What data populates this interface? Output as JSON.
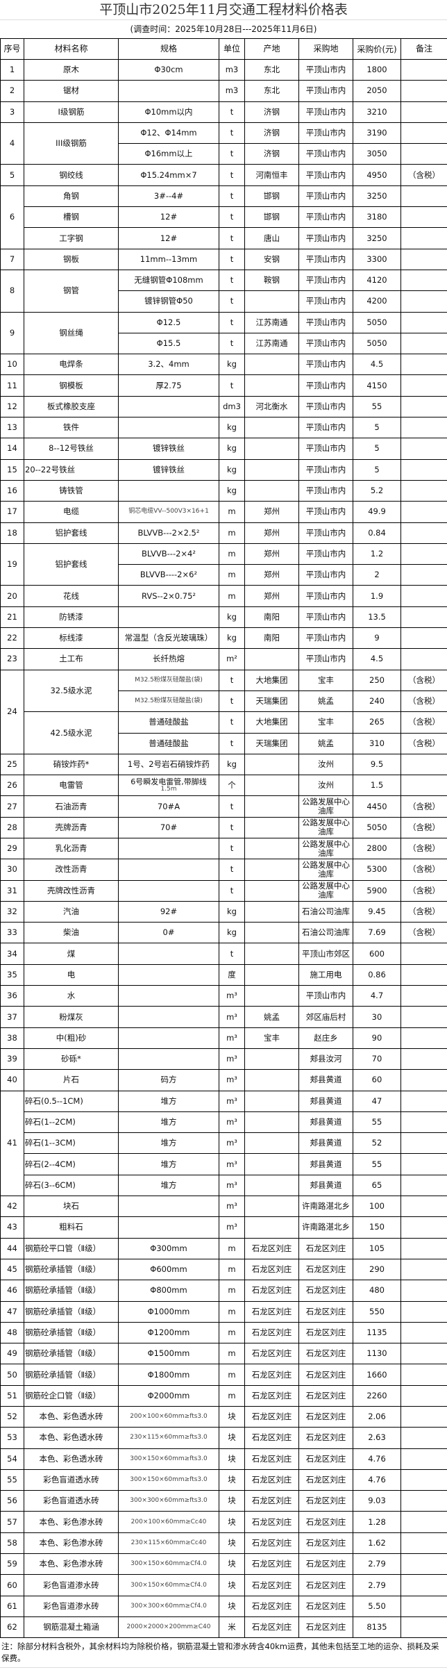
{
  "title": "平顶山市2025年11月交通工程材料价格表",
  "subtitle": "(调查时间：2025年10月28日---2025年11月6日)",
  "columns": [
    "序号",
    "材料名称",
    "规格",
    "单位",
    "产地",
    "采购地",
    "采购价(元)",
    "备注"
  ],
  "groups": [
    {
      "no": "1",
      "items": [
        {
          "name": "原木",
          "spec": "Φ30cm",
          "unit": "m3",
          "origin": "东北",
          "place": "平顶山市内",
          "price": "1800",
          "note": ""
        }
      ]
    },
    {
      "no": "2",
      "items": [
        {
          "name": "锯材",
          "spec": "",
          "unit": "m3",
          "origin": "东北",
          "place": "平顶山市内",
          "price": "2050",
          "note": ""
        }
      ]
    },
    {
      "no": "3",
      "items": [
        {
          "name": "Ⅰ级钢筋",
          "spec": "Φ10mm以内",
          "unit": "t",
          "origin": "济钢",
          "place": "平顶山市内",
          "price": "3210",
          "note": ""
        }
      ]
    },
    {
      "no": "4",
      "items": [
        {
          "name": "III级钢筋",
          "spec": "Φ12、Φ14mm",
          "unit": "t",
          "origin": "济钢",
          "place": "平顶山市内",
          "price": "3190",
          "note": ""
        },
        {
          "name": null,
          "spec": "Φ16mm以上",
          "unit": "t",
          "origin": "济钢",
          "place": "平顶山市内",
          "price": "3050",
          "note": ""
        }
      ]
    },
    {
      "no": "5",
      "items": [
        {
          "name": "钢绞线",
          "spec": "Φ15.24mm×7",
          "unit": "t",
          "origin": "河南恒丰",
          "place": "平顶山市内",
          "price": "4950",
          "note": "（含税）"
        }
      ]
    },
    {
      "no": "6",
      "items": [
        {
          "name": "角钢",
          "spec": "3#--4#",
          "unit": "t",
          "origin": "邯钢",
          "place": "平顶山市内",
          "price": "3250",
          "note": ""
        },
        {
          "name": "槽钢",
          "spec": "12#",
          "unit": "t",
          "origin": "邯钢",
          "place": "平顶山市内",
          "price": "3180",
          "note": ""
        },
        {
          "name": "工字钢",
          "spec": "12#",
          "unit": "t",
          "origin": "唐山",
          "place": "平顶山市内",
          "price": "3250",
          "note": ""
        }
      ]
    },
    {
      "no": "7",
      "items": [
        {
          "name": "钢板",
          "spec": "11mm--13mm",
          "unit": "t",
          "origin": "安钢",
          "place": "平顶山市内",
          "price": "3300",
          "note": ""
        }
      ]
    },
    {
      "no": "8",
      "items": [
        {
          "name": "钢管",
          "spec": "无缝钢管Φ108mm",
          "unit": "t",
          "origin": "鞍钢",
          "place": "平顶山市内",
          "price": "4120",
          "note": ""
        },
        {
          "name": null,
          "spec": "镀锌钢管Φ50",
          "unit": "t",
          "origin": "",
          "place": "平顶山市内",
          "price": "4200",
          "note": ""
        }
      ]
    },
    {
      "no": "9",
      "items": [
        {
          "name": "钢丝绳",
          "spec": "Φ12.5",
          "unit": "t",
          "origin": "江苏南通",
          "place": "平顶山市内",
          "price": "5050",
          "note": ""
        },
        {
          "name": null,
          "spec": "Φ15.5",
          "unit": "t",
          "origin": "江苏南通",
          "place": "平顶山市内",
          "price": "5050",
          "note": ""
        }
      ]
    },
    {
      "no": "10",
      "items": [
        {
          "name": "电焊条",
          "spec": "3.2、4mm",
          "unit": "kg",
          "origin": "",
          "place": "平顶山市内",
          "price": "4.5",
          "note": ""
        }
      ]
    },
    {
      "no": "11",
      "items": [
        {
          "name": "钢模板",
          "spec": "厚2.75",
          "unit": "t",
          "origin": "",
          "place": "平顶山市内",
          "price": "4150",
          "note": ""
        }
      ]
    },
    {
      "no": "12",
      "items": [
        {
          "name": "板式橡胶支座",
          "spec": "",
          "unit": "dm3",
          "origin": "河北衡水",
          "place": "平顶山市内",
          "price": "55",
          "note": ""
        }
      ]
    },
    {
      "no": "13",
      "items": [
        {
          "name": "铁件",
          "spec": "",
          "unit": "kg",
          "origin": "",
          "place": "平顶山市内",
          "price": "5",
          "note": ""
        }
      ]
    },
    {
      "no": "14",
      "items": [
        {
          "name": "8--12号铁丝",
          "spec": "镀锌铁丝",
          "unit": "kg",
          "origin": "",
          "place": "平顶山市内",
          "price": "5",
          "note": ""
        }
      ]
    },
    {
      "no": "15",
      "items": [
        {
          "name": "20--22号铁丝",
          "spec": "镀锌铁丝",
          "unit": "kg",
          "origin": "",
          "place": "平顶山市内",
          "price": "5",
          "note": ""
        }
      ]
    },
    {
      "no": "16",
      "items": [
        {
          "name": "铸铁管",
          "spec": "",
          "unit": "kg",
          "origin": "",
          "place": "平顶山市内",
          "price": "5.2",
          "note": ""
        }
      ]
    },
    {
      "no": "17",
      "items": [
        {
          "name": "电缆",
          "spec": "铜芯电缆VV--500V3×16+1",
          "spec_small": true,
          "unit": "m",
          "origin": "郑州",
          "place": "平顶山市内",
          "price": "49.9",
          "note": ""
        }
      ]
    },
    {
      "no": "18",
      "items": [
        {
          "name": "铝护套线",
          "spec": "BLVVB---2×2.5²",
          "unit": "m",
          "origin": "郑州",
          "place": "平顶山市内",
          "price": "0.84",
          "note": ""
        }
      ]
    },
    {
      "no": "19",
      "items": [
        {
          "name": "铝护套线",
          "spec": "BLVVB---2×4²",
          "unit": "m",
          "origin": "郑州",
          "place": "平顶山市内",
          "price": "1.2",
          "note": ""
        },
        {
          "name": null,
          "spec": "BLVVB----2×6²",
          "unit": "m",
          "origin": "郑州",
          "place": "平顶山市内",
          "price": "2",
          "note": ""
        }
      ]
    },
    {
      "no": "20",
      "items": [
        {
          "name": "花线",
          "spec": "RVS--2×0.75²",
          "unit": "m",
          "origin": "郑州",
          "place": "平顶山市内",
          "price": "1.9",
          "note": ""
        }
      ]
    },
    {
      "no": "21",
      "items": [
        {
          "name": "防锈漆",
          "spec": "",
          "unit": "kg",
          "origin": "南阳",
          "place": "平顶山市内",
          "price": "13.5",
          "note": ""
        }
      ]
    },
    {
      "no": "22",
      "items": [
        {
          "name": "标线漆",
          "spec": "常温型（含反光玻璃珠）",
          "unit": "kg",
          "origin": "南阳",
          "place": "平顶山市内",
          "price": "9",
          "note": ""
        }
      ]
    },
    {
      "no": "23",
      "items": [
        {
          "name": "土工布",
          "spec": "长纤热熔",
          "unit": "m²",
          "origin": "",
          "place": "平顶山市内",
          "price": "4.5",
          "note": ""
        }
      ]
    },
    {
      "no": "24",
      "items": [
        {
          "name": "32.5级水泥",
          "name_span": 2,
          "spec": "M32.5粉煤灰硅酸盐(袋)",
          "spec_small": true,
          "unit": "t",
          "origin": "大地集团",
          "place": "宝丰",
          "price": "250",
          "note": "（含税）"
        },
        {
          "name": null,
          "spec": "M32.5粉煤灰硅酸盐(袋)",
          "spec_small": true,
          "unit": "t",
          "origin": "天瑞集团",
          "place": "姚孟",
          "price": "240",
          "note": "（含税）"
        },
        {
          "name": "42.5级水泥",
          "name_span": 2,
          "spec": "普通硅酸盐",
          "unit": "t",
          "origin": "大地集团",
          "place": "宝丰",
          "price": "265",
          "note": "（含税）"
        },
        {
          "name": null,
          "spec": "普通硅酸盐",
          "unit": "t",
          "origin": "天瑞集团",
          "place": "姚孟",
          "price": "310",
          "note": "（含税）"
        }
      ]
    },
    {
      "no": "25",
      "items": [
        {
          "name": "硝铵炸药*",
          "spec": "1号、2号岩石硝铵炸药",
          "unit": "kg",
          "origin": "",
          "place": "汝州",
          "price": "9.5",
          "note": ""
        }
      ]
    },
    {
      "no": "26",
      "items": [
        {
          "name": "电雷管",
          "spec": "6号瞬发电雷管,带脚线",
          "spec_line2": "1.5m",
          "unit": "个",
          "origin": "",
          "place": "汝州",
          "price": "1.5",
          "note": ""
        }
      ]
    },
    {
      "no": "27",
      "items": [
        {
          "name": "石油沥青",
          "spec": "70#A",
          "unit": "t",
          "origin": "",
          "place": "公路发展中心油库",
          "price": "4450",
          "note": "（含税）"
        }
      ]
    },
    {
      "no": "28",
      "items": [
        {
          "name": "壳牌沥青",
          "spec": "70#",
          "unit": "t",
          "origin": "",
          "place": "公路发展中心油库",
          "price": "5050",
          "note": "（含税）"
        }
      ]
    },
    {
      "no": "29",
      "items": [
        {
          "name": "乳化沥青",
          "spec": "",
          "unit": "t",
          "origin": "",
          "place": "公路发展中心油库",
          "price": "2800",
          "note": "（含税）"
        }
      ]
    },
    {
      "no": "30",
      "items": [
        {
          "name": "改性沥青",
          "spec": "",
          "unit": "t",
          "origin": "",
          "place": "公路发展中心油库",
          "price": "5300",
          "note": "（含税）"
        }
      ]
    },
    {
      "no": "31",
      "items": [
        {
          "name": "壳牌改性沥青",
          "spec": "",
          "unit": "t",
          "origin": "",
          "place": "公路发展中心油库",
          "price": "5900",
          "note": "（含税）"
        }
      ]
    },
    {
      "no": "32",
      "items": [
        {
          "name": "汽油",
          "spec": "92#",
          "unit": "kg",
          "origin": "",
          "place": "石油公司油库",
          "price": "9.45",
          "note": "（含税）"
        }
      ]
    },
    {
      "no": "33",
      "items": [
        {
          "name": "柴油",
          "spec": "0#",
          "unit": "kg",
          "origin": "",
          "place": "石油公司油库",
          "price": "7.69",
          "note": "（含税）"
        }
      ]
    },
    {
      "no": "34",
      "items": [
        {
          "name": "煤",
          "spec": "",
          "unit": "t",
          "origin": "",
          "place": "平顶山市郊区",
          "price": "600",
          "note": ""
        }
      ]
    },
    {
      "no": "35",
      "items": [
        {
          "name": "电",
          "spec": "",
          "unit": "度",
          "origin": "",
          "place": "施工用电",
          "price": "0.86",
          "note": ""
        }
      ]
    },
    {
      "no": "36",
      "items": [
        {
          "name": "水",
          "spec": "",
          "unit": "m³",
          "origin": "",
          "place": "平顶山市内",
          "price": "4.7",
          "note": ""
        }
      ]
    },
    {
      "no": "37",
      "items": [
        {
          "name": "粉煤灰",
          "spec": "",
          "unit": "m³",
          "origin": "姚孟",
          "place": "郊区庙后村",
          "price": "30",
          "note": ""
        }
      ]
    },
    {
      "no": "38",
      "items": [
        {
          "name": "中(粗)砂",
          "spec": "",
          "unit": "m³",
          "origin": "宝丰",
          "place": "赵庄乡",
          "price": "90",
          "note": ""
        }
      ]
    },
    {
      "no": "39",
      "items": [
        {
          "name": "砂砾*",
          "spec": "",
          "unit": "m³",
          "origin": "",
          "place": "郏县汝河",
          "price": "70",
          "note": ""
        }
      ]
    },
    {
      "no": "40",
      "items": [
        {
          "name": "片石",
          "spec": "码方",
          "unit": "m³",
          "origin": "",
          "place": "郏县黄道",
          "price": "60",
          "note": ""
        }
      ]
    },
    {
      "no": "41",
      "items": [
        {
          "name": "碎石(0.5--1CM)",
          "spec": "堆方",
          "unit": "m³",
          "origin": "",
          "place": "郏县黄道",
          "price": "47",
          "note": ""
        },
        {
          "name": "碎石(1--2CM)",
          "spec": "堆方",
          "unit": "m³",
          "origin": "",
          "place": "郏县黄道",
          "price": "55",
          "note": ""
        },
        {
          "name": "碎石(1--3CM)",
          "spec": "堆方",
          "unit": "m³",
          "origin": "",
          "place": "郏县黄道",
          "price": "52",
          "note": ""
        },
        {
          "name": "碎石(2--4CM)",
          "spec": "堆方",
          "unit": "m³",
          "origin": "",
          "place": "郏县黄道",
          "price": "55",
          "note": ""
        },
        {
          "name": "碎石(3--6CM)",
          "spec": "堆方",
          "unit": "m³",
          "origin": "",
          "place": "郏县黄道",
          "price": "65",
          "note": ""
        }
      ]
    },
    {
      "no": "42",
      "items": [
        {
          "name": "块石",
          "spec": "",
          "unit": "m³",
          "origin": "",
          "place": "许南路湛北乡",
          "price": "100",
          "note": ""
        }
      ]
    },
    {
      "no": "43",
      "items": [
        {
          "name": "粗料石",
          "spec": "",
          "unit": "m³",
          "origin": "",
          "place": "许南路湛北乡",
          "price": "150",
          "note": ""
        }
      ]
    },
    {
      "no": "44",
      "items": [
        {
          "name": "钢筋砼平口管（Ⅱ级）",
          "spec": "Φ300mm",
          "unit": "m",
          "origin": "石龙区刘庄",
          "place": "石龙区刘庄",
          "price": "105",
          "note": ""
        }
      ]
    },
    {
      "no": "45",
      "items": [
        {
          "name": "钢筋砼承插管（Ⅱ级）",
          "spec": "Φ600mm",
          "unit": "m",
          "origin": "石龙区刘庄",
          "place": "石龙区刘庄",
          "price": "290",
          "note": ""
        }
      ]
    },
    {
      "no": "46",
      "items": [
        {
          "name": "钢筋砼承插管（Ⅱ级）",
          "spec": "Φ800mm",
          "unit": "m",
          "origin": "石龙区刘庄",
          "place": "石龙区刘庄",
          "price": "480",
          "note": ""
        }
      ]
    },
    {
      "no": "47",
      "items": [
        {
          "name": "钢筋砼承插管（Ⅱ级）",
          "spec": "Φ1000mm",
          "unit": "m",
          "origin": "石龙区刘庄",
          "place": "石龙区刘庄",
          "price": "550",
          "note": ""
        }
      ]
    },
    {
      "no": "48",
      "items": [
        {
          "name": "钢筋砼承插管（Ⅱ级）",
          "spec": "Φ1200mm",
          "unit": "m",
          "origin": "石龙区刘庄",
          "place": "石龙区刘庄",
          "price": "1135",
          "note": ""
        }
      ]
    },
    {
      "no": "49",
      "items": [
        {
          "name": "钢筋砼承插管（Ⅱ级）",
          "spec": "Φ1500mm",
          "unit": "m",
          "origin": "石龙区刘庄",
          "place": "石龙区刘庄",
          "price": "1130",
          "note": ""
        }
      ]
    },
    {
      "no": "50",
      "items": [
        {
          "name": "钢筋砼承插管（Ⅱ级）",
          "spec": "Φ1800mm",
          "unit": "m",
          "origin": "石龙区刘庄",
          "place": "石龙区刘庄",
          "price": "1660",
          "note": ""
        }
      ]
    },
    {
      "no": "51",
      "items": [
        {
          "name": "钢筋砼企口管（Ⅱ级）",
          "spec": "Φ2000mm",
          "unit": "m",
          "origin": "石龙区刘庄",
          "place": "石龙区刘庄",
          "price": "2260",
          "note": ""
        }
      ]
    },
    {
      "no": "52",
      "items": [
        {
          "name": "本色、彩色透水砖",
          "spec": "200×100×60mm≥fts3.0",
          "spec_small": true,
          "unit": "块",
          "origin": "石龙区刘庄",
          "place": "石龙区刘庄",
          "price": "2.06",
          "note": ""
        }
      ]
    },
    {
      "no": "53",
      "items": [
        {
          "name": "本色、彩色透水砖",
          "spec": "230×115×60mm≥fts3.0",
          "spec_small": true,
          "unit": "块",
          "origin": "石龙区刘庄",
          "place": "石龙区刘庄",
          "price": "2.63",
          "note": ""
        }
      ]
    },
    {
      "no": "54",
      "items": [
        {
          "name": "本色、彩色透水砖",
          "spec": "300×150×60mm≥fts3.0",
          "spec_small": true,
          "unit": "块",
          "origin": "石龙区刘庄",
          "place": "石龙区刘庄",
          "price": "4.76",
          "note": ""
        }
      ]
    },
    {
      "no": "55",
      "items": [
        {
          "name": "彩色盲道透水砖",
          "spec": "300×150×60mm≥fts3.0",
          "spec_small": true,
          "unit": "块",
          "origin": "石龙区刘庄",
          "place": "石龙区刘庄",
          "price": "4.76",
          "note": ""
        }
      ]
    },
    {
      "no": "56",
      "items": [
        {
          "name": "彩色盲道透水砖",
          "spec": "300×300×60mm≥fts3.0",
          "spec_small": true,
          "unit": "块",
          "origin": "石龙区刘庄",
          "place": "石龙区刘庄",
          "price": "9.03",
          "note": ""
        }
      ]
    },
    {
      "no": "57",
      "items": [
        {
          "name": "本色、彩色渗水砖",
          "spec": "200×100×60mm≥Cc40",
          "spec_small": true,
          "unit": "块",
          "origin": "石龙区刘庄",
          "place": "石龙区刘庄",
          "price": "1.28",
          "note": ""
        }
      ]
    },
    {
      "no": "58",
      "items": [
        {
          "name": "本色、彩色渗水砖",
          "spec": "230×115×60mm≥Cc40",
          "spec_small": true,
          "unit": "块",
          "origin": "石龙区刘庄",
          "place": "石龙区刘庄",
          "price": "1.62",
          "note": ""
        }
      ]
    },
    {
      "no": "59",
      "items": [
        {
          "name": "本色、彩色渗水砖",
          "spec": "300×150×60mm≥Cf4.0",
          "spec_small": true,
          "unit": "块",
          "origin": "石龙区刘庄",
          "place": "石龙区刘庄",
          "price": "2.79",
          "note": ""
        }
      ]
    },
    {
      "no": "60",
      "items": [
        {
          "name": "彩色盲道渗水砖",
          "spec": "300×150×60mm≥Cf4.0",
          "spec_small": true,
          "unit": "块",
          "origin": "石龙区刘庄",
          "place": "石龙区刘庄",
          "price": "2.79",
          "note": ""
        }
      ]
    },
    {
      "no": "61",
      "items": [
        {
          "name": "彩色盲道渗水砖",
          "spec": "300×300×60mm≥Cf4.0",
          "spec_small": true,
          "unit": "块",
          "origin": "石龙区刘庄",
          "place": "石龙区刘庄",
          "price": "5.50",
          "note": ""
        }
      ]
    },
    {
      "no": "62",
      "items": [
        {
          "name": "钢筋混凝土箱涵",
          "spec": "2000×2000×200mm≥C40",
          "spec_small": true,
          "unit": "米",
          "origin": "石龙区刘庄",
          "place": "石龙区刘庄",
          "price": "8135",
          "note": ""
        }
      ]
    }
  ],
  "footnote": "注：除部分材料含税外，其余材料均为除税价格，钢筋混凝土管和渗水砖含40km运费，其他未包括至工地的运杂、损耗及采保费。"
}
